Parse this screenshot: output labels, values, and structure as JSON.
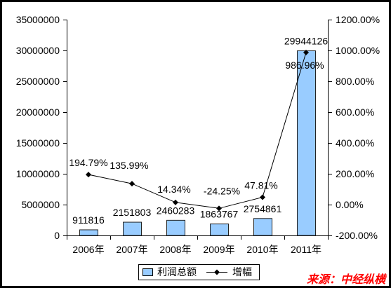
{
  "chart_data": {
    "type": "bar",
    "categories": [
      "2006年",
      "2007年",
      "2008年",
      "2009年",
      "2010年",
      "2011年"
    ],
    "series": [
      {
        "name": "利润总额",
        "type": "bar",
        "axis": "left",
        "color": "#99CCFF",
        "values": [
          911816,
          2151803,
          2460283,
          1863767,
          2754861,
          29944126
        ],
        "labels": [
          "911816",
          "2151803",
          "2460283",
          "1863767",
          "2754861",
          "29944126"
        ]
      },
      {
        "name": "增幅",
        "type": "line",
        "axis": "right",
        "color": "#000000",
        "marker": "diamond",
        "values": [
          194.79,
          135.99,
          14.34,
          -24.25,
          47.81,
          986.96
        ],
        "labels": [
          "194.79%",
          "135.99%",
          "14.34%",
          "-24.25%",
          "47.81%",
          "986.96%"
        ]
      }
    ],
    "y_left": {
      "min": 0,
      "max": 35000000,
      "step": 5000000,
      "ticks": [
        "0",
        "5000000",
        "10000000",
        "15000000",
        "20000000",
        "25000000",
        "30000000",
        "35000000"
      ]
    },
    "y_right": {
      "min": -200,
      "max": 1200,
      "step": 200,
      "ticks": [
        "-200.00%",
        "0.00%",
        "200.00%",
        "400.00%",
        "600.00%",
        "800.00%",
        "1000.00%",
        "1200.00%"
      ]
    },
    "grid": false,
    "legend": {
      "position": "bottom"
    }
  },
  "source": {
    "text": "来源：中经纵横",
    "color": "#FF0000"
  }
}
